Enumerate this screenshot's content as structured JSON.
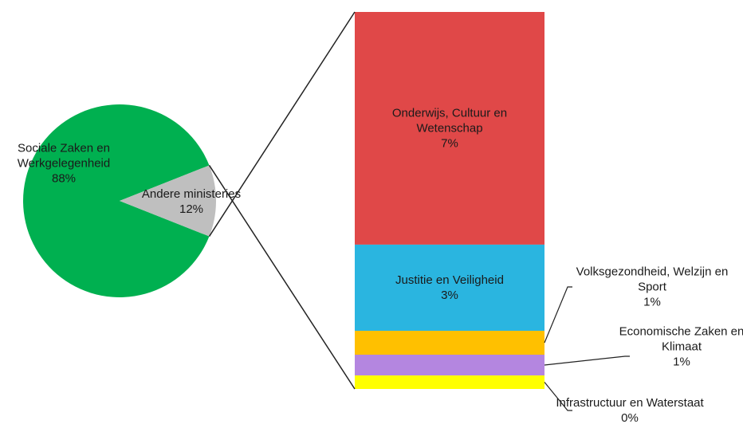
{
  "chart_data": [
    {
      "type": "pie",
      "categories": [
        "Sociale Zaken en Werkgelegenheid",
        "Andere ministeries"
      ],
      "values": [
        88,
        12
      ],
      "value_labels": [
        "88%",
        "12%"
      ],
      "colors": [
        "#00b050",
        "#bfbfbf"
      ]
    },
    {
      "type": "bar",
      "stacked": true,
      "categories": [
        "Onderwijs, Cultuur en Wetenschap",
        "Justitie en Veiligheid",
        "Volksgezondheid, Welzijn en Sport",
        "Economische Zaken en Klimaat",
        "Infrastructuur en Waterstaat"
      ],
      "values": [
        7.4,
        2.74,
        0.76,
        0.66,
        0.43
      ],
      "value_labels": [
        "7%",
        "3%",
        "1%",
        "1%",
        "0%"
      ],
      "colors": [
        "#e04848",
        "#2ab5e0",
        "#ffc000",
        "#b486e0",
        "#ffff00"
      ]
    }
  ]
}
